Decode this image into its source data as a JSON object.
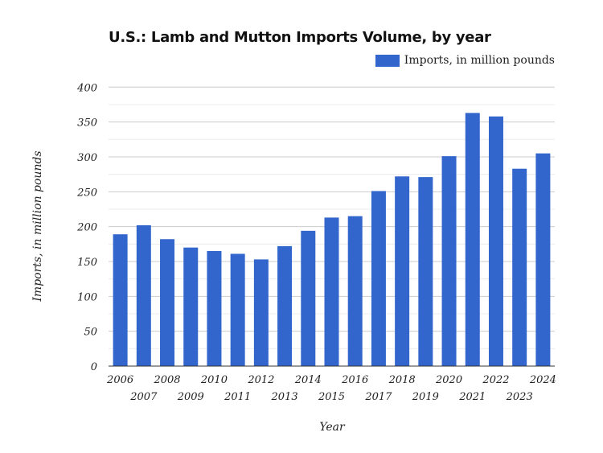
{
  "chart_data": {
    "type": "bar",
    "title": "U.S.: Lamb and Mutton Imports Volume, by year",
    "xlabel": "Year",
    "ylabel": "Imports, in million pounds",
    "ylim": [
      0,
      400
    ],
    "yticks": [
      0,
      50,
      100,
      150,
      200,
      250,
      300,
      350,
      400
    ],
    "grid": true,
    "legend_position": "top-right",
    "categories": [
      "2006",
      "2007",
      "2008",
      "2009",
      "2010",
      "2011",
      "2012",
      "2013",
      "2014",
      "2015",
      "2016",
      "2017",
      "2018",
      "2019",
      "2020",
      "2021",
      "2022",
      "2023",
      "2024"
    ],
    "series": [
      {
        "name": "Imports, in million pounds",
        "color": "#3366cc",
        "values": [
          189,
          202,
          182,
          170,
          165,
          161,
          153,
          172,
          194,
          213,
          215,
          251,
          272,
          271,
          301,
          363,
          358,
          283,
          305
        ]
      }
    ]
  }
}
